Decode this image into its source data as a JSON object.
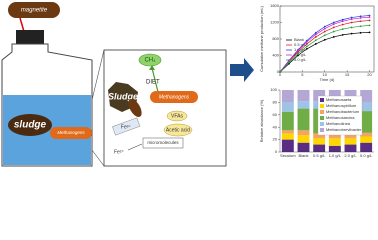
{
  "diagram": {
    "magnetite": "magnetite",
    "bottle_sludge": "sludge",
    "bottle_methanogens": "Methanogens",
    "ch4": "CH₄",
    "sludge": "Sludge",
    "diet": "DIET",
    "methanogens": "Methanogens",
    "vfas": "VFAs",
    "acetic_acid": "Acetic acid",
    "fe3": "Fe³⁺",
    "fe2": "Fe²⁺",
    "micromolecules": "micromolecules"
  },
  "chart_data": [
    {
      "type": "line",
      "xlabel": "Time (d)",
      "ylabel": "Cumulative methane production (mL)",
      "x": [
        0,
        2,
        4,
        6,
        8,
        10,
        12,
        14,
        16,
        18,
        20
      ],
      "xlim": [
        0,
        21
      ],
      "xticks": [
        0,
        5,
        10,
        15,
        20
      ],
      "ylim": [
        0,
        1600
      ],
      "yticks": [
        0,
        400,
        800,
        1200,
        1600
      ],
      "series": [
        {
          "name": "Blank",
          "color": "#000000",
          "values": [
            0,
            200,
            400,
            560,
            680,
            780,
            850,
            900,
            930,
            950,
            960
          ]
        },
        {
          "name": "0.5 g/L",
          "color": "#e02020",
          "values": [
            0,
            250,
            480,
            680,
            850,
            980,
            1080,
            1150,
            1200,
            1230,
            1250
          ]
        },
        {
          "name": "1.0 g/L",
          "color": "#2040e0",
          "values": [
            0,
            280,
            530,
            760,
            950,
            1100,
            1200,
            1270,
            1320,
            1350,
            1370
          ]
        },
        {
          "name": "2.0 g/L",
          "color": "#d020d0",
          "values": [
            0,
            270,
            510,
            730,
            910,
            1050,
            1160,
            1230,
            1280,
            1310,
            1330
          ]
        },
        {
          "name": "5.0 g/L",
          "color": "#20a040",
          "values": [
            0,
            230,
            440,
            620,
            770,
            890,
            980,
            1040,
            1080,
            1110,
            1130
          ]
        }
      ]
    },
    {
      "type": "stacked-bar",
      "ylabel": "Relative abundance (%)",
      "categories": [
        "Seculum",
        "Blank",
        "0.5 g/L",
        "1.0 g/L",
        "2.0 g/L",
        "5.0 g/L"
      ],
      "ylim": [
        0,
        100
      ],
      "yticks": [
        0,
        20,
        40,
        60,
        80,
        100
      ],
      "series": [
        {
          "name": "Methanosaeta",
          "color": "#5b2c83",
          "values": [
            20,
            15,
            12,
            10,
            12,
            15
          ]
        },
        {
          "name": "Methanospirillum",
          "color": "#ffd700",
          "values": [
            10,
            12,
            10,
            12,
            10,
            10
          ]
        },
        {
          "name": "Methanobacterium",
          "color": "#f4a460",
          "values": [
            5,
            8,
            8,
            10,
            8,
            6
          ]
        },
        {
          "name": "Methanosarcina",
          "color": "#70ad47",
          "values": [
            30,
            35,
            40,
            38,
            40,
            35
          ]
        },
        {
          "name": "Methanolinea",
          "color": "#9dc3e6",
          "values": [
            15,
            12,
            12,
            12,
            12,
            14
          ]
        },
        {
          "name": "Methanobrevibacter",
          "color": "#b4a7d6",
          "values": [
            20,
            18,
            18,
            18,
            18,
            20
          ]
        }
      ]
    }
  ]
}
